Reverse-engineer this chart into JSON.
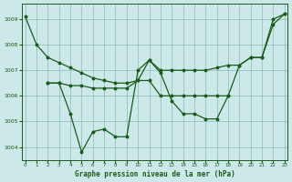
{
  "title": "Graphe pression niveau de la mer (hPa)",
  "bg_color": "#cce8e8",
  "grid_color": "#88bbbb",
  "line_color": "#1a5c1a",
  "series1": {
    "x": [
      0,
      1,
      2,
      3,
      4,
      5,
      6,
      7,
      8,
      9,
      10,
      11,
      12,
      13,
      14,
      15,
      16,
      17,
      18,
      19,
      20,
      21,
      22,
      23
    ],
    "y": [
      1009.1,
      1008.0,
      1007.5,
      1007.3,
      1007.1,
      1006.9,
      1006.7,
      1006.6,
      1006.5,
      1006.5,
      1006.6,
      1007.4,
      1007.0,
      1007.0,
      1007.0,
      1007.0,
      1007.0,
      1007.1,
      1007.2,
      1007.2,
      1007.5,
      1007.5,
      1008.8,
      1009.2
    ]
  },
  "series2": {
    "x": [
      2,
      3,
      4,
      5,
      6,
      7,
      8,
      9,
      10,
      11,
      12,
      13,
      14,
      15,
      16,
      17,
      18,
      19,
      20,
      21,
      22,
      23
    ],
    "y": [
      1006.5,
      1006.5,
      1006.4,
      1006.4,
      1006.3,
      1006.3,
      1006.3,
      1006.3,
      1006.6,
      1006.6,
      1006.0,
      1006.0,
      1006.0,
      1006.0,
      1006.0,
      1006.0,
      1006.0,
      1007.2,
      1007.5,
      1007.5,
      1009.0,
      1009.2
    ]
  },
  "series3": {
    "x": [
      2,
      3,
      4,
      5,
      6,
      7,
      8,
      9,
      10,
      11,
      12,
      13,
      14,
      15,
      16,
      17,
      18
    ],
    "y": [
      1006.5,
      1006.5,
      1005.3,
      1003.8,
      1004.6,
      1004.7,
      1004.4,
      1004.4,
      1007.0,
      1007.4,
      1006.9,
      1005.8,
      1005.3,
      1005.3,
      1005.1,
      1005.1,
      1006.0
    ]
  },
  "ylim": [
    1003.5,
    1009.6
  ],
  "yticks": [
    1004,
    1005,
    1006,
    1007,
    1008,
    1009
  ],
  "xlim": [
    -0.3,
    23.3
  ],
  "xticks": [
    0,
    1,
    2,
    3,
    4,
    5,
    6,
    7,
    8,
    9,
    10,
    11,
    12,
    13,
    14,
    15,
    16,
    17,
    18,
    19,
    20,
    21,
    22,
    23
  ]
}
